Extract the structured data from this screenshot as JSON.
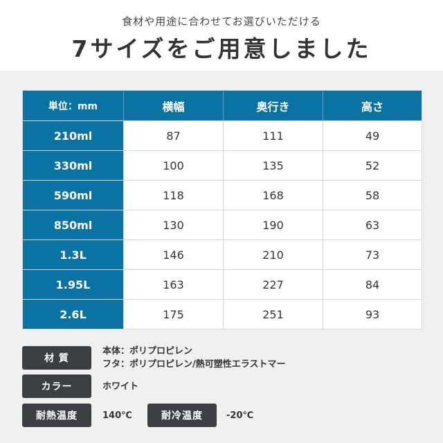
{
  "header": {
    "subtitle": "食材や用途に合わせてお選びいただける",
    "title": "7サイズをご用意しました"
  },
  "table": {
    "columns": [
      "単位：mm",
      "横幅",
      "奥行き",
      "高さ"
    ],
    "rows": [
      {
        "size": "210ml",
        "width": "87",
        "depth": "111",
        "height": "49"
      },
      {
        "size": "330ml",
        "width": "100",
        "depth": "135",
        "height": "52"
      },
      {
        "size": "590ml",
        "width": "118",
        "depth": "168",
        "height": "58"
      },
      {
        "size": "850ml",
        "width": "130",
        "depth": "190",
        "height": "63"
      },
      {
        "size": "1.3L",
        "width": "146",
        "depth": "210",
        "height": "73"
      },
      {
        "size": "1.95L",
        "width": "163",
        "depth": "227",
        "height": "84"
      },
      {
        "size": "2.6L",
        "width": "175",
        "depth": "251",
        "height": "93"
      }
    ]
  },
  "specs": {
    "material": {
      "label": "材 質",
      "line1": "本体：ポリプロピレン",
      "line2": "フタ：ポリプロピレン/熱可塑性エラストマー"
    },
    "color": {
      "label": "カラー",
      "value": "ホワイト"
    },
    "heat": {
      "label": "耐熱温度",
      "value": "140℃"
    },
    "cold": {
      "label": "耐冷温度",
      "value": "-20℃"
    }
  },
  "colors": {
    "accent": "#0b72a4",
    "badge": "#3b3f44",
    "background": "#f0f0f0"
  }
}
